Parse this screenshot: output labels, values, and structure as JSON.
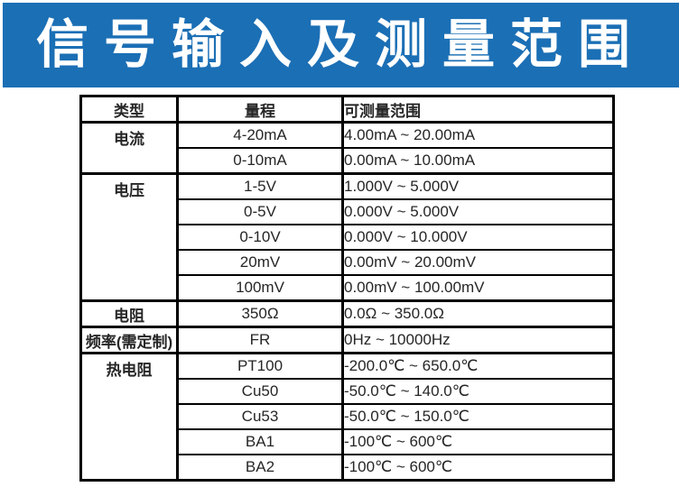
{
  "banner": {
    "title": "信号输入及测量范围",
    "bg_color": "#1b6fb5",
    "text_color": "#ffffff"
  },
  "table": {
    "headers": [
      "类型",
      "量程",
      "可测量范围"
    ],
    "rows": [
      {
        "type": "电流",
        "range": "4-20mA",
        "measurable": "4.00mA ~ 20.00mA"
      },
      {
        "range": "0-10mA",
        "measurable": "0.00mA ~ 10.00mA"
      },
      {
        "type": "电压",
        "range": "1-5V",
        "measurable": "1.000V ~ 5.000V"
      },
      {
        "range": "0-5V",
        "measurable": "0.000V ~ 5.000V"
      },
      {
        "range": "0-10V",
        "measurable": "0.000V ~ 10.000V"
      },
      {
        "range": "20mV",
        "measurable": "0.00mV ~ 20.00mV"
      },
      {
        "range": "100mV",
        "measurable": "0.00mV ~ 100.00mV"
      },
      {
        "type": "电阻",
        "range": "350Ω",
        "measurable": "0.0Ω ~ 350.0Ω"
      },
      {
        "type": "频率(需定制)",
        "range": "FR",
        "measurable": "0Hz ~ 10000Hz"
      },
      {
        "type": "热电阻",
        "range": "PT100",
        "measurable": "-200.0℃ ~ 650.0℃"
      },
      {
        "range": "Cu50",
        "measurable": "-50.0℃ ~ 140.0℃"
      },
      {
        "range": "Cu53",
        "measurable": "-50.0℃ ~ 150.0℃"
      },
      {
        "range": "BA1",
        "measurable": "-100℃ ~ 600℃"
      },
      {
        "range": "BA2",
        "measurable": "-100℃ ~ 600℃"
      }
    ]
  }
}
